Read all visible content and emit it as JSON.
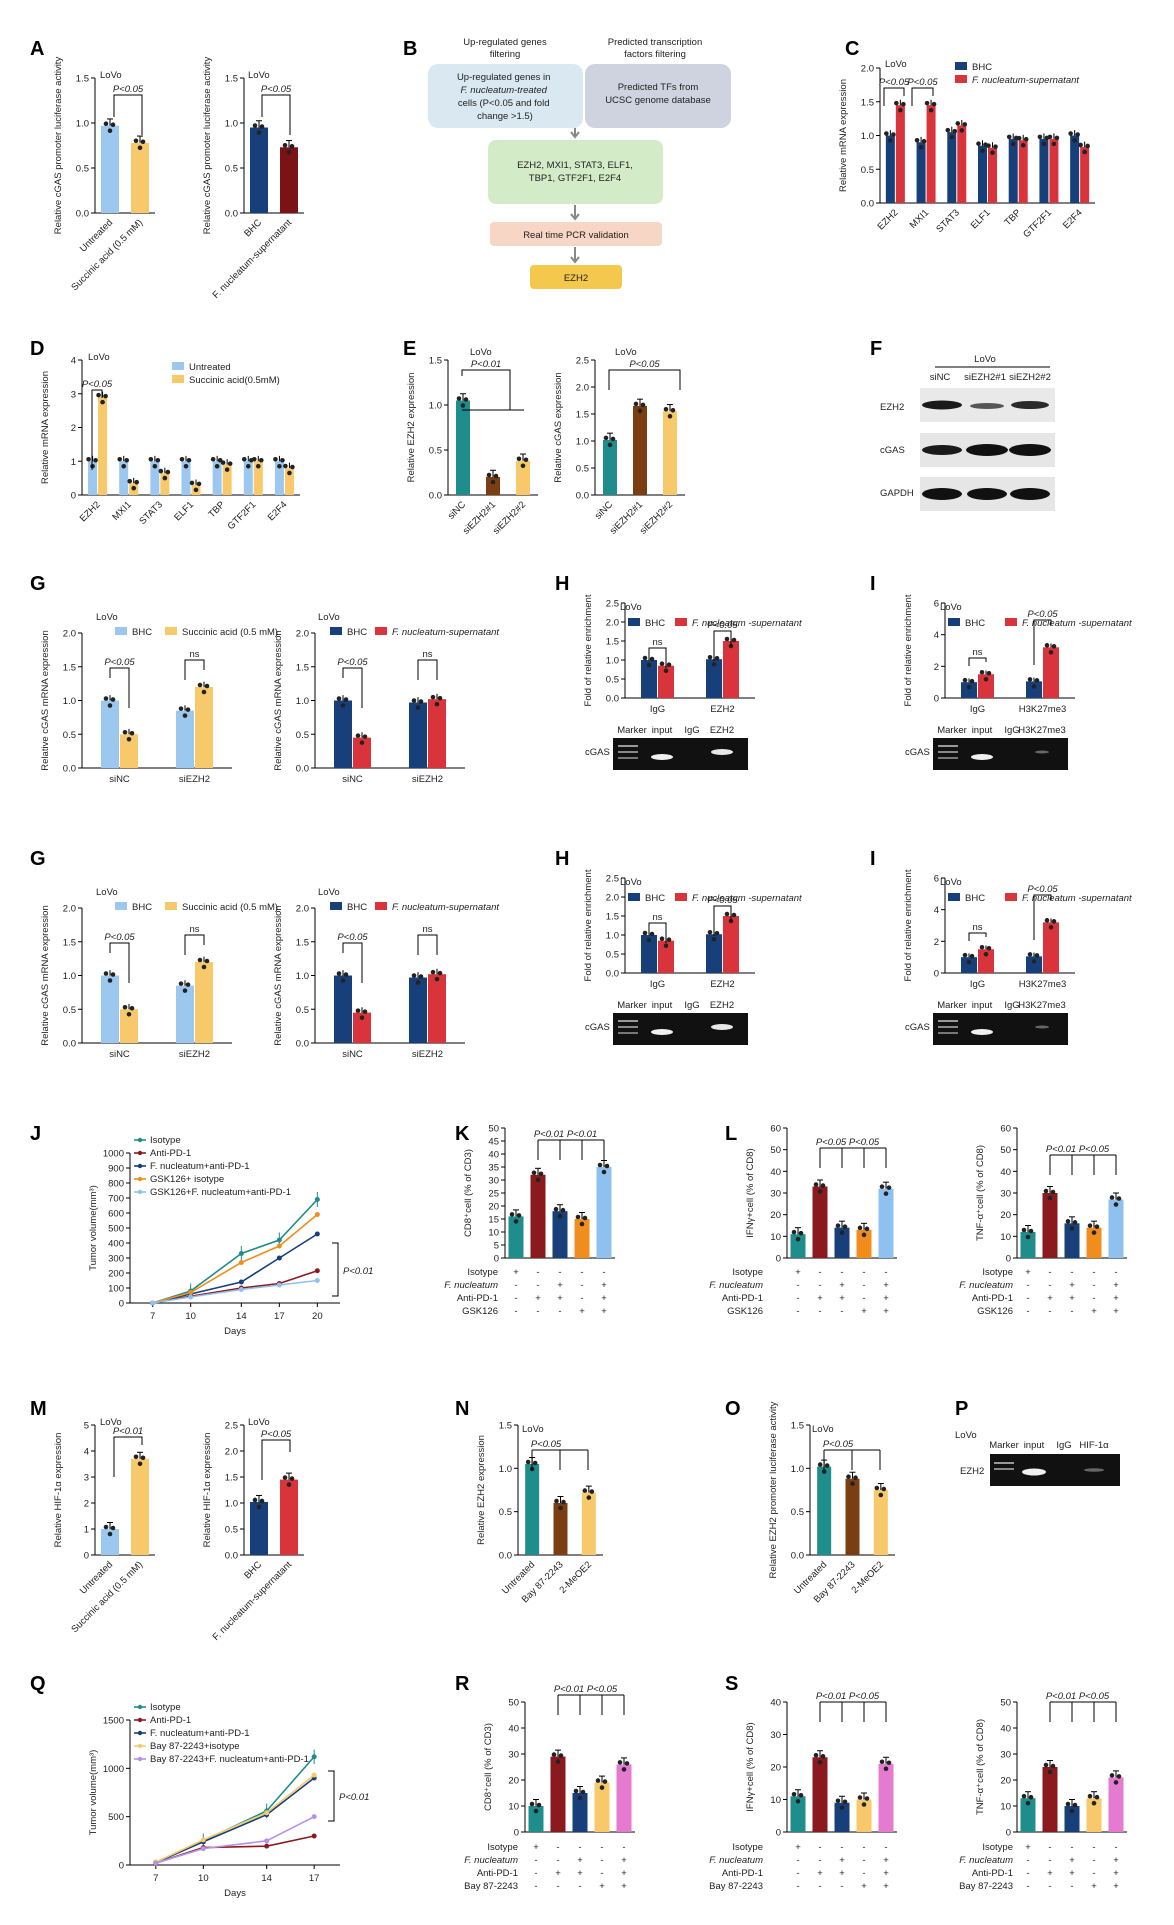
{
  "colors": {
    "lightblue": "#9cc7ef",
    "yellow": "#f7c96a",
    "navy": "#173f7a",
    "darkred": "#7a1216",
    "red": "#d9343b",
    "teal": "#1f8d8c",
    "maroon": "#8b1a1f",
    "orange": "#f08d1c",
    "lightblue2": "#8fc1f0",
    "brown": "#7b3e12",
    "pink": "#e57ad1",
    "gray": "#8a8a8a",
    "purple": "#b591e8"
  },
  "labels": {
    "A": "A",
    "B": "B",
    "C": "C",
    "D": "D",
    "E": "E",
    "F": "F",
    "G": "G",
    "H": "H",
    "I": "I",
    "J": "J",
    "K": "K",
    "L": "L",
    "M": "M",
    "N": "N",
    "O": "O",
    "P": "P",
    "Q": "Q",
    "R": "R",
    "S": "S",
    "lovo": "LoVo",
    "p005": "P<0.05",
    "p001": "P<0.01",
    "ns": "ns"
  },
  "panelB": {
    "up_title": "Up-regulated genes filtering",
    "pred_title": "Predicted transcription factors filtering",
    "box1": "Up-regulated genes in F. nucleatum-treated cells (P<0.05 and fold change >1.5)",
    "box2": "Predicted TFs from UCSC genome database",
    "box3": "EZH2, MXI1, STAT3, ELF1, TBP1, GTF2F1, E2F4",
    "box4": "Real time PCR validation",
    "box5": "EZH2"
  },
  "panelF": {
    "header": "LoVo",
    "lanes": [
      "siNC",
      "siEZH2#1",
      "siEZH2#2"
    ],
    "rows": [
      "EZH2",
      "cGAS",
      "GAPDH"
    ]
  },
  "gels": {
    "H": {
      "lanes": [
        "Marker",
        "input",
        "IgG",
        "EZH2"
      ],
      "row": "cGAS"
    },
    "I": {
      "lanes": [
        "Marker",
        "input",
        "IgG",
        "H3K27me3"
      ],
      "row": "cGAS"
    },
    "P": {
      "lanes": [
        "Marker",
        "input",
        "IgG",
        "HIF-1α"
      ],
      "row": "EZH2"
    }
  },
  "chart_data": [
    {
      "id": "A1",
      "type": "bar",
      "categories": [
        "Untreated",
        "Succinic acid (0.5 mM)"
      ],
      "values": [
        0.97,
        0.78
      ],
      "ylabel": "Relative cGAS promoter luciferase activity",
      "ylim": [
        0,
        1.5
      ],
      "yticks": [
        "0.0",
        "0.5",
        "1.0",
        "1.5"
      ]
    },
    {
      "id": "A2",
      "type": "bar",
      "categories": [
        "BHC",
        "F. nucleatum-supernatant"
      ],
      "values": [
        0.95,
        0.73
      ],
      "ylabel": "Relative cGAS promoter luciferase activity",
      "ylim": [
        0,
        1.5
      ],
      "yticks": [
        "0.0",
        "0.5",
        "1.0",
        "1.5"
      ]
    },
    {
      "id": "C",
      "type": "bar",
      "categories": [
        "EZH2",
        "MXI1",
        "STAT3",
        "ELF1",
        "TBP",
        "GTF2F1",
        "E2F4"
      ],
      "series": [
        {
          "name": "BHC",
          "values": [
            1.0,
            0.9,
            1.05,
            0.85,
            0.95,
            0.95,
            1.0
          ]
        },
        {
          "name": "F. nucleatum-supernatant",
          "values": [
            1.45,
            1.45,
            1.15,
            0.82,
            0.93,
            0.95,
            0.83
          ]
        }
      ],
      "ylabel": "Relative mRNA expression",
      "ylim": [
        0,
        2.0
      ],
      "yticks": [
        "0.0",
        "0.5",
        "1.0",
        "1.5",
        "2.0"
      ]
    },
    {
      "id": "D",
      "type": "bar",
      "categories": [
        "EZH2",
        "MXI1",
        "STAT3",
        "ELF1",
        "TBP",
        "GTF2F1",
        "E2F4"
      ],
      "series": [
        {
          "name": "Untreated",
          "values": [
            1.0,
            1.0,
            1.0,
            1.0,
            1.0,
            1.0,
            1.0
          ]
        },
        {
          "name": "Succinic acid(0.5mM)",
          "values": [
            2.9,
            0.35,
            0.65,
            0.3,
            0.9,
            1.0,
            0.8
          ]
        }
      ],
      "ylabel": "Relative mRNA expression",
      "ylim": [
        0,
        4
      ],
      "yticks": [
        "0",
        "1",
        "2",
        "3",
        "4"
      ]
    },
    {
      "id": "E1",
      "type": "bar",
      "categories": [
        "siNC",
        "siEZH2#1",
        "siEZH2#2"
      ],
      "values": [
        1.05,
        0.2,
        0.38
      ],
      "ylabel": "Relative EZH2 expression",
      "ylim": [
        0,
        1.5
      ],
      "yticks": [
        "0.0",
        "0.5",
        "1.0",
        "1.5"
      ]
    },
    {
      "id": "E2",
      "type": "bar",
      "categories": [
        "siNC",
        "siEZH2#1",
        "siEZH2#2"
      ],
      "values": [
        1.02,
        1.65,
        1.55
      ],
      "ylabel": "Relative cGAS expression",
      "ylim": [
        0,
        2.5
      ],
      "yticks": [
        "0.0",
        "0.5",
        "1.0",
        "1.5",
        "2.0",
        "2.5"
      ]
    },
    {
      "id": "G1",
      "type": "bar",
      "categories": [
        "siNC",
        "siEZH2"
      ],
      "series": [
        {
          "name": "BHC",
          "values": [
            1.0,
            0.85
          ]
        },
        {
          "name": "Succinic acid (0.5 mM)",
          "values": [
            0.5,
            1.2
          ]
        }
      ],
      "ylabel": "Relative cGAS mRNA expression",
      "ylim": [
        0,
        2.0
      ],
      "yticks": [
        "0.0",
        "0.5",
        "1.0",
        "1.5",
        "2.0"
      ]
    },
    {
      "id": "G2",
      "type": "bar",
      "categories": [
        "siNC",
        "siEZH2"
      ],
      "series": [
        {
          "name": "BHC",
          "values": [
            1.0,
            0.97
          ]
        },
        {
          "name": "F. nucleatum-supernatant",
          "values": [
            0.45,
            1.02
          ]
        }
      ],
      "ylabel": "Relative cGAS mRNA expression",
      "ylim": [
        0,
        2.0
      ],
      "yticks": [
        "0.0",
        "0.5",
        "1.0",
        "1.5",
        "2.0"
      ]
    },
    {
      "id": "H",
      "type": "bar",
      "categories": [
        "IgG",
        "EZH2"
      ],
      "series": [
        {
          "name": "BHC",
          "values": [
            1.0,
            1.02
          ]
        },
        {
          "name": "F. nucleatum -supernatant",
          "values": [
            0.85,
            1.5
          ]
        }
      ],
      "ylabel": "Fold of relative enrichment",
      "ylim": [
        0,
        2.5
      ],
      "yticks": [
        "0.0",
        "0.5",
        "1.0",
        "1.5",
        "2.0",
        "2.5"
      ]
    },
    {
      "id": "I",
      "type": "bar",
      "categories": [
        "IgG",
        "H3K27me3"
      ],
      "series": [
        {
          "name": "BHC",
          "values": [
            1.0,
            1.05
          ]
        },
        {
          "name": "F. nucleatum -supernatant",
          "values": [
            1.5,
            3.2
          ]
        }
      ],
      "ylabel": "Fold of relative enrichment",
      "ylim": [
        0,
        6
      ],
      "yticks": [
        "0",
        "2",
        "4",
        "6"
      ]
    },
    {
      "id": "J",
      "type": "line",
      "x": [
        7,
        10,
        14,
        17,
        20
      ],
      "series": [
        {
          "name": "Isotype",
          "values": [
            0,
            80,
            330,
            420,
            690
          ]
        },
        {
          "name": "Anti-PD-1",
          "values": [
            0,
            45,
            100,
            130,
            215
          ]
        },
        {
          "name": "F. nucleatum+anti-PD-1",
          "values": [
            0,
            60,
            140,
            300,
            460
          ]
        },
        {
          "name": "GSK126+ isotype",
          "values": [
            0,
            70,
            270,
            380,
            590
          ]
        },
        {
          "name": "GSK126+F. nucleatum+anti-PD-1",
          "values": [
            0,
            40,
            90,
            120,
            150
          ]
        }
      ],
      "xlabel": "Days",
      "ylabel": "Tumor volume(mm³)",
      "ylim": [
        0,
        1000
      ],
      "yticks": [
        "0",
        "100",
        "200",
        "300",
        "400",
        "500",
        "600",
        "700",
        "800",
        "900",
        "1000"
      ]
    },
    {
      "id": "K",
      "type": "bar",
      "categories": [
        "1",
        "2",
        "3",
        "4",
        "5"
      ],
      "values": [
        16,
        32,
        18,
        15,
        35
      ],
      "ylabel": "CD8⁺cell (% of CD3)",
      "ylim": [
        0,
        50
      ],
      "yticks": [
        "0",
        "5",
        "10",
        "15",
        "20",
        "25",
        "30",
        "35",
        "40",
        "45",
        "50"
      ],
      "row_labels": [
        "Isotype",
        "F. nucleatum",
        "Anti-PD-1",
        "GSK126"
      ],
      "table": [
        [
          "+",
          "-",
          "-",
          "-",
          "-"
        ],
        [
          "-",
          "-",
          "+",
          "-",
          "+"
        ],
        [
          "-",
          "+",
          "+",
          "-",
          "+"
        ],
        [
          "-",
          "-",
          "-",
          "+",
          "+"
        ]
      ]
    },
    {
      "id": "L1",
      "type": "bar",
      "categories": [
        "1",
        "2",
        "3",
        "4",
        "5"
      ],
      "values": [
        11,
        33,
        14,
        13,
        32
      ],
      "ylabel": "IFNγ+cell (% of CD8)",
      "ylim": [
        0,
        60
      ],
      "yticks": [
        "0",
        "10",
        "20",
        "30",
        "40",
        "50",
        "60"
      ],
      "row_labels": [
        "Isotype",
        "F. nucleatum",
        "Anti-PD-1",
        "GSK126"
      ],
      "table": [
        [
          "+",
          "-",
          "-",
          "-",
          "-"
        ],
        [
          "-",
          "-",
          "+",
          "-",
          "+"
        ],
        [
          "-",
          "+",
          "+",
          "-",
          "+"
        ],
        [
          "-",
          "-",
          "-",
          "+",
          "+"
        ]
      ]
    },
    {
      "id": "L2",
      "type": "bar",
      "categories": [
        "1",
        "2",
        "3",
        "4",
        "5"
      ],
      "values": [
        12,
        30,
        16,
        14,
        27
      ],
      "ylabel": "TNF-α⁺cell (% of CD8)",
      "ylim": [
        0,
        60
      ],
      "yticks": [
        "0",
        "10",
        "20",
        "30",
        "40",
        "50",
        "60"
      ],
      "row_labels": [
        "Isotype",
        "F. nucleatum",
        "Anti-PD-1",
        "GSK126"
      ],
      "table": [
        [
          "+",
          "-",
          "-",
          "-",
          "-"
        ],
        [
          "-",
          "-",
          "+",
          "-",
          "+"
        ],
        [
          "-",
          "+",
          "+",
          "-",
          "+"
        ],
        [
          "-",
          "-",
          "-",
          "+",
          "+"
        ]
      ]
    },
    {
      "id": "M1",
      "type": "bar",
      "categories": [
        "Untreated",
        "Succinic acid (0.5 mM)"
      ],
      "values": [
        1.0,
        3.7
      ],
      "ylabel": "Relative HIF-1α expression",
      "ylim": [
        0,
        5
      ],
      "yticks": [
        "0",
        "1",
        "2",
        "3",
        "4",
        "5"
      ]
    },
    {
      "id": "M2",
      "type": "bar",
      "categories": [
        "BHC",
        "F. nucleatum-supernatant"
      ],
      "values": [
        1.02,
        1.45
      ],
      "ylabel": "Relative HIF-1α expression",
      "ylim": [
        0,
        2.5
      ],
      "yticks": [
        "0.0",
        "0.5",
        "1.0",
        "1.5",
        "2.0",
        "2.5"
      ]
    },
    {
      "id": "N",
      "type": "bar",
      "categories": [
        "Untreated",
        "Bay 87-2243",
        "2-MeOE2"
      ],
      "values": [
        1.05,
        0.6,
        0.72
      ],
      "ylabel": "Relative EZH2 expression",
      "ylim": [
        0,
        1.5
      ],
      "yticks": [
        "0.0",
        "0.5",
        "1.0",
        "1.5"
      ]
    },
    {
      "id": "O",
      "type": "bar",
      "categories": [
        "Untreated",
        "Bay 87-2243",
        "2-MeOE2"
      ],
      "values": [
        1.02,
        0.88,
        0.75
      ],
      "ylabel": "Relative EZH2 promoter luciferase activity",
      "ylim": [
        0,
        1.5
      ],
      "yticks": [
        "0.0",
        "0.5",
        "1.0",
        "1.5"
      ]
    },
    {
      "id": "Q",
      "type": "line",
      "x": [
        7,
        10,
        14,
        17
      ],
      "series": [
        {
          "name": "Isotype",
          "values": [
            30,
            250,
            560,
            1120
          ]
        },
        {
          "name": "Anti-PD-1",
          "values": [
            20,
            180,
            195,
            300
          ]
        },
        {
          "name": "F. nucleatum+anti-PD-1",
          "values": [
            25,
            240,
            520,
            900
          ]
        },
        {
          "name": "Bay 87-2243+isotype",
          "values": [
            30,
            260,
            540,
            930
          ]
        },
        {
          "name": "Bay 87-2243+F. nucleatum+anti-PD-1",
          "values": [
            20,
            170,
            250,
            500
          ]
        }
      ],
      "xlabel": "Days",
      "ylabel": "Tumor volume(mm³)",
      "ylim": [
        0,
        1500
      ],
      "yticks": [
        "0",
        "500",
        "1000",
        "1500"
      ]
    },
    {
      "id": "R",
      "type": "bar",
      "categories": [
        "1",
        "2",
        "3",
        "4",
        "5"
      ],
      "values": [
        10,
        29,
        15,
        19,
        26
      ],
      "ylabel": "CD8⁺cell (% of CD3)",
      "ylim": [
        0,
        50
      ],
      "yticks": [
        "0",
        "10",
        "20",
        "30",
        "40",
        "50"
      ],
      "row_labels": [
        "Isotype",
        "F. nucleatum",
        "Anti-PD-1",
        "Bay 87-2243"
      ],
      "table": [
        [
          "+",
          "-",
          "-",
          "-",
          "-"
        ],
        [
          "-",
          "-",
          "+",
          "-",
          "+"
        ],
        [
          "-",
          "+",
          "+",
          "-",
          "+"
        ],
        [
          "-",
          "-",
          "-",
          "+",
          "+"
        ]
      ]
    },
    {
      "id": "S1",
      "type": "bar",
      "categories": [
        "1",
        "2",
        "3",
        "4",
        "5"
      ],
      "values": [
        11,
        23,
        9,
        10,
        21
      ],
      "ylabel": "IFNγ+cell (% of CD8)",
      "ylim": [
        0,
        40
      ],
      "yticks": [
        "0",
        "10",
        "20",
        "30",
        "40"
      ],
      "row_labels": [
        "Isotype",
        "F. nucleatum",
        "Anti-PD-1",
        "Bay 87-2243"
      ],
      "table": [
        [
          "+",
          "-",
          "-",
          "-",
          "-"
        ],
        [
          "-",
          "-",
          "+",
          "-",
          "+"
        ],
        [
          "-",
          "+",
          "+",
          "-",
          "+"
        ],
        [
          "-",
          "-",
          "-",
          "+",
          "+"
        ]
      ]
    },
    {
      "id": "S2",
      "type": "bar",
      "categories": [
        "1",
        "2",
        "3",
        "4",
        "5"
      ],
      "values": [
        13,
        25,
        10,
        13,
        21
      ],
      "ylabel": "TNF-α⁺cell (% of CD8)",
      "ylim": [
        0,
        50
      ],
      "yticks": [
        "0",
        "10",
        "20",
        "30",
        "40",
        "50"
      ],
      "row_labels": [
        "Isotype",
        "F. nucleatum",
        "Anti-PD-1",
        "Bay 87-2243"
      ],
      "table": [
        [
          "+",
          "-",
          "-",
          "-",
          "-"
        ],
        [
          "-",
          "-",
          "+",
          "-",
          "+"
        ],
        [
          "-",
          "+",
          "+",
          "-",
          "+"
        ],
        [
          "-",
          "-",
          "-",
          "+",
          "+"
        ]
      ]
    }
  ]
}
